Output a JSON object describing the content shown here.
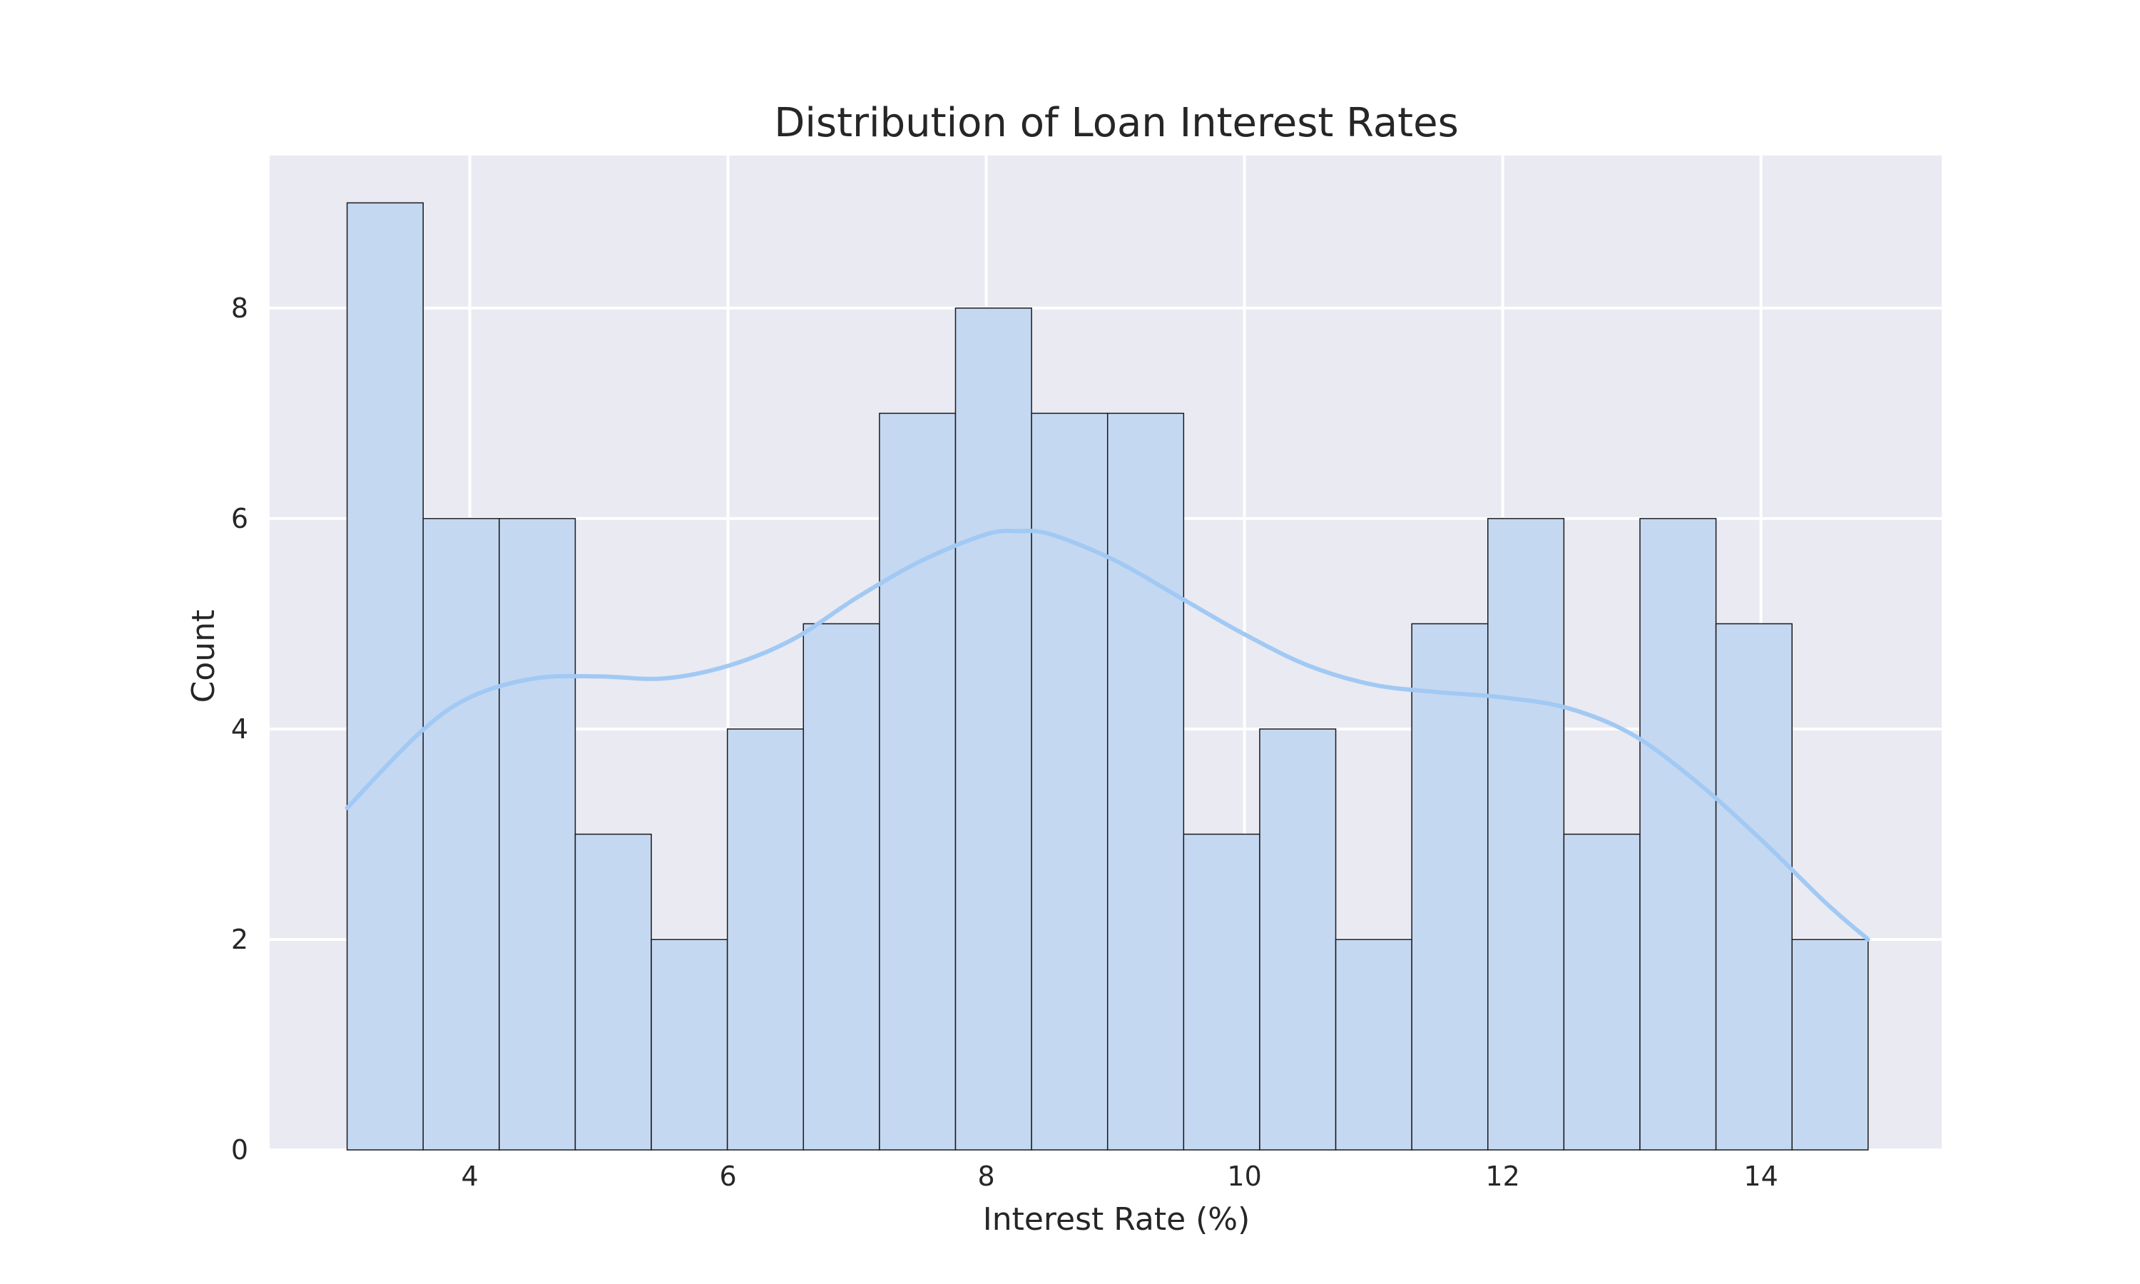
{
  "chart_data": {
    "type": "bar",
    "title": "Distribution of Loan Interest Rates",
    "xlabel": "Interest Rate (%)",
    "ylabel": "Count",
    "xlim": [
      2.45,
      15.4
    ],
    "ylim": [
      0,
      9.45
    ],
    "x_ticks": [
      4,
      6,
      8,
      10,
      12,
      14
    ],
    "y_ticks": [
      0,
      2,
      4,
      6,
      8
    ],
    "grid": true,
    "colors": {
      "background": "#eaeaf2",
      "bar_fill": "#c5d8f1",
      "bar_edge": "#1a1a1a",
      "kde_line": "#a1c9f4",
      "text": "#262626"
    },
    "bins": {
      "start": 3.05,
      "end": 14.83,
      "counts": [
        9,
        6,
        6,
        3,
        2,
        4,
        5,
        7,
        8,
        7,
        7,
        3,
        4,
        2,
        5,
        6,
        3,
        6,
        5,
        2
      ]
    },
    "kde": {
      "x": [
        3.05,
        3.6,
        4.0,
        4.5,
        5.0,
        5.5,
        6.0,
        6.5,
        7.0,
        7.5,
        8.0,
        8.25,
        8.5,
        9.0,
        9.5,
        10.0,
        10.5,
        11.0,
        11.5,
        12.0,
        12.5,
        13.0,
        13.5,
        14.0,
        14.5,
        14.83
      ],
      "y": [
        3.25,
        3.95,
        4.3,
        4.48,
        4.5,
        4.48,
        4.6,
        4.85,
        5.25,
        5.6,
        5.85,
        5.88,
        5.85,
        5.6,
        5.25,
        4.9,
        4.6,
        4.42,
        4.35,
        4.3,
        4.2,
        3.95,
        3.5,
        2.95,
        2.35,
        2.0
      ]
    }
  }
}
